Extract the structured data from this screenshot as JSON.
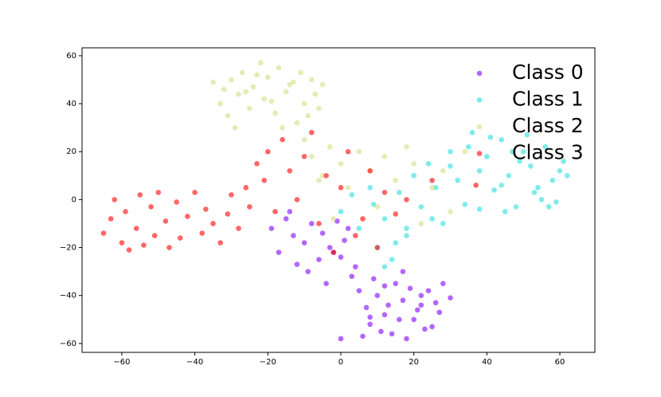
{
  "chart_data": {
    "type": "scatter",
    "xlim": [
      -70.9,
      69.6
    ],
    "ylim": [
      -63.7,
      63.3
    ],
    "xticks": [
      {
        "value": -60,
        "label": "−60"
      },
      {
        "value": -40,
        "label": "−40"
      },
      {
        "value": -20,
        "label": "−20"
      },
      0,
      20,
      40,
      60
    ],
    "yticks": [
      {
        "value": -60,
        "label": "−60"
      },
      {
        "value": -40,
        "label": "−40"
      },
      {
        "value": -20,
        "label": "−20"
      },
      0,
      20,
      40,
      60
    ],
    "grid": false,
    "legend": "upper right",
    "alpha": 0.6,
    "series": [
      {
        "name": "Class 0",
        "color": "#8000ff",
        "x": [
          -19,
          -17,
          -15,
          -13,
          -12,
          -10,
          -8,
          -6,
          -5,
          -3,
          -1,
          0,
          1,
          3,
          -14,
          -9,
          -4,
          2,
          5,
          7,
          8,
          10,
          12,
          14,
          15,
          17,
          18,
          20,
          22,
          24,
          25,
          27,
          28,
          30,
          6,
          9,
          11,
          13,
          16,
          19,
          21,
          23,
          26,
          4,
          8,
          12,
          17,
          22,
          -2,
          0
        ],
        "y": [
          -12,
          -22,
          -8,
          -15,
          -27,
          -18,
          -10,
          -25,
          -14,
          -20,
          -9,
          -24,
          -17,
          -32,
          -5,
          -30,
          -35,
          -12,
          -38,
          -45,
          -52,
          -40,
          -48,
          -56,
          -35,
          -42,
          -58,
          -50,
          -44,
          -38,
          -53,
          -47,
          -35,
          -41,
          -57,
          -33,
          -55,
          -44,
          -50,
          -37,
          -46,
          -54,
          -43,
          -28,
          -49,
          -36,
          -30,
          -40,
          -22,
          -58
        ]
      },
      {
        "name": "Class 1",
        "color": "#2adddd",
        "x": [
          0,
          3,
          5,
          8,
          10,
          12,
          14,
          16,
          18,
          20,
          22,
          24,
          26,
          28,
          30,
          32,
          34,
          36,
          38,
          40,
          42,
          44,
          46,
          48,
          50,
          52,
          54,
          56,
          58,
          60,
          62,
          38,
          41,
          45,
          49,
          53,
          57,
          61,
          35,
          30,
          25,
          12,
          15,
          18,
          9,
          44,
          47,
          51,
          55,
          59
        ],
        "y": [
          -5,
          2,
          -12,
          5,
          -20,
          -8,
          -25,
          3,
          -15,
          10,
          -3,
          15,
          5,
          -10,
          20,
          8,
          -2,
          28,
          12,
          18,
          4,
          25,
          10,
          -3,
          20,
          14,
          5,
          22,
          8,
          12,
          10,
          -4,
          26,
          -5,
          16,
          3,
          -3,
          16,
          22,
          14,
          -8,
          -28,
          -18,
          -12,
          -2,
          6,
          20,
          27,
          0,
          -1
        ]
      },
      {
        "name": "Class 2",
        "color": "#d4dd80",
        "x": [
          -35,
          -33,
          -31,
          -30,
          -28,
          -27,
          -25,
          -24,
          -22,
          -21,
          -20,
          -18,
          -17,
          -15,
          -14,
          -12,
          -11,
          -10,
          -8,
          -7,
          -6,
          -5,
          -29,
          -26,
          -23,
          -19,
          -16,
          -13,
          -9,
          -32,
          -10,
          -8,
          -5,
          -3,
          0,
          2,
          5,
          8,
          10,
          12,
          15,
          18,
          20,
          22,
          25,
          28,
          30,
          34,
          -6,
          -2
        ],
        "y": [
          49,
          40,
          35,
          50,
          44,
          53,
          38,
          47,
          57,
          42,
          51,
          36,
          55,
          45,
          48,
          32,
          53,
          40,
          50,
          44,
          38,
          48,
          30,
          45,
          52,
          41,
          30,
          49,
          35,
          46,
          25,
          18,
          10,
          22,
          15,
          5,
          20,
          12,
          -3,
          18,
          8,
          22,
          15,
          -10,
          5,
          12,
          -5,
          20,
          8,
          -8
        ]
      },
      {
        "name": "Class 3",
        "color": "#ff0000",
        "x": [
          -65,
          -63,
          -62,
          -60,
          -59,
          -58,
          -56,
          -55,
          -54,
          -52,
          -51,
          -50,
          -48,
          -47,
          -45,
          -44,
          -42,
          -40,
          -38,
          -37,
          -35,
          -33,
          -31,
          -30,
          -28,
          -26,
          -25,
          -23,
          -21,
          -20,
          -18,
          -16,
          -14,
          -12,
          -10,
          -8,
          -6,
          -4,
          -2,
          0,
          2,
          4,
          6,
          8,
          10,
          12,
          15,
          18,
          25,
          37
        ],
        "y": [
          -14,
          -8,
          0,
          -18,
          -5,
          -21,
          -12,
          2,
          -19,
          -3,
          -15,
          3,
          -9,
          -20,
          -1,
          -16,
          -7,
          3,
          -14,
          -4,
          -10,
          -18,
          -6,
          2,
          -12,
          5,
          -3,
          15,
          8,
          20,
          -5,
          25,
          12,
          0,
          18,
          28,
          -10,
          10,
          -22,
          5,
          20,
          -15,
          -8,
          12,
          -20,
          3,
          -6,
          0,
          8,
          6
        ]
      }
    ]
  }
}
